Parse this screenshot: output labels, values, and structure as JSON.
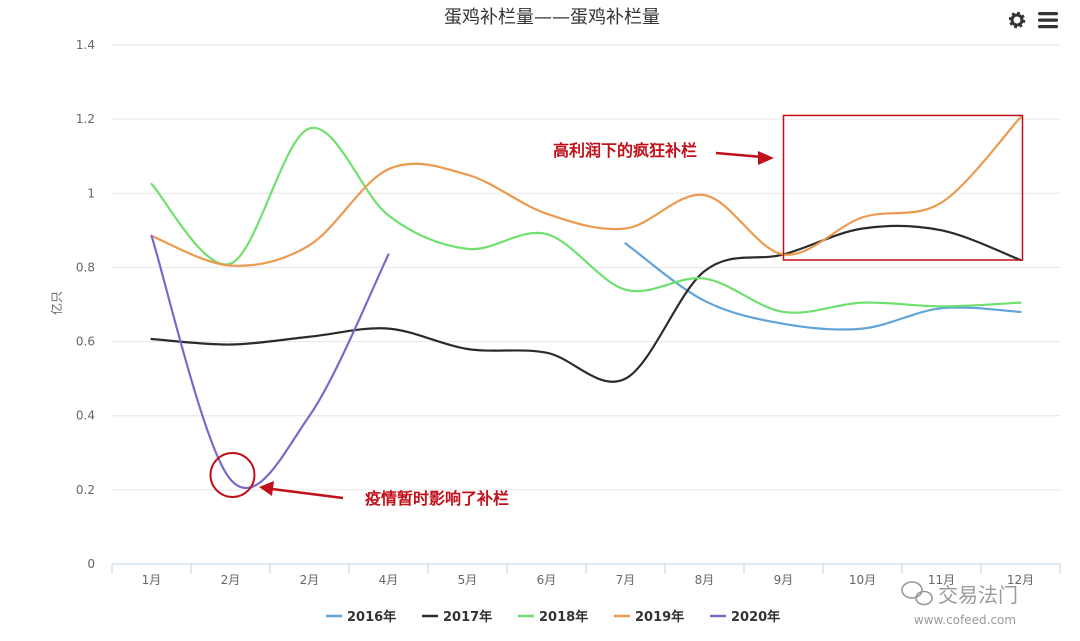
{
  "chart_data": {
    "type": "line",
    "title": "蛋鸡补栏量——蛋鸡补栏量",
    "ylabel": "亿只",
    "xlabel": "",
    "categories": [
      "1月",
      "2月",
      "2月",
      "4月",
      "5月",
      "6月",
      "7月",
      "8月",
      "9月",
      "10月",
      "11月",
      "12月"
    ],
    "ylim": [
      0,
      1.4
    ],
    "yticks": [
      0,
      0.2,
      0.4,
      0.6,
      0.8,
      1,
      1.2,
      1.4
    ],
    "grid": true,
    "legend_position": "bottom-center",
    "series": [
      {
        "name": "2016年",
        "color": "#5fa3d8",
        "values": [
          null,
          null,
          null,
          null,
          null,
          null,
          0.865,
          0.71,
          0.648,
          0.635,
          0.69,
          0.68
        ]
      },
      {
        "name": "2017年",
        "color": "#2b2b2b",
        "values": [
          0.607,
          0.592,
          0.613,
          0.635,
          0.58,
          0.57,
          0.5,
          0.79,
          0.835,
          0.905,
          0.9,
          0.82
        ]
      },
      {
        "name": "2018年",
        "color": "#6fe06f",
        "values": [
          1.025,
          0.81,
          1.175,
          0.94,
          0.85,
          0.89,
          0.74,
          0.77,
          0.68,
          0.705,
          0.695,
          0.705
        ]
      },
      {
        "name": "2019年",
        "color": "#eb9a4f",
        "values": [
          0.885,
          0.805,
          0.86,
          1.065,
          1.05,
          0.945,
          0.905,
          0.995,
          0.835,
          0.935,
          0.975,
          1.205
        ]
      },
      {
        "name": "2020年",
        "color": "#7a6ac8",
        "values": [
          0.885,
          0.228,
          0.4,
          0.835,
          null,
          null,
          null,
          null,
          null,
          null,
          null,
          null
        ]
      }
    ],
    "annotations": [
      {
        "text": "高利润下的疯狂补栏",
        "color": "#c0101a",
        "box_from": "9月",
        "box_to": "12月",
        "box_ymin": 0.82,
        "box_ymax": 1.21
      },
      {
        "text": "疫情暂时影响了补栏",
        "color": "#c0101a",
        "circle_at": "2月",
        "circle_value": 0.24
      }
    ]
  },
  "toolbar": {
    "icons": [
      "gear-icon",
      "menu-icon"
    ]
  },
  "watermark": {
    "text": "交易法门",
    "url": "www.cofeed.com"
  }
}
